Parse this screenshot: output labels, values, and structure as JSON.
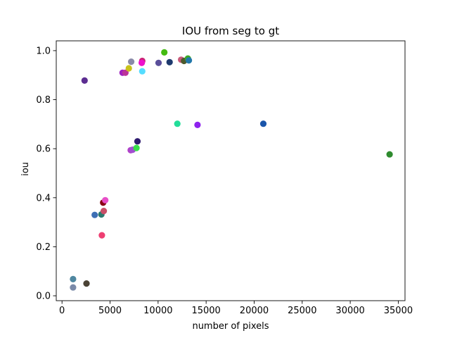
{
  "chart_data": {
    "type": "scatter",
    "title": "IOU from seg to gt",
    "xlabel": "number of pixels",
    "ylabel": "iou",
    "xlim": [
      -600,
      35700
    ],
    "ylim": [
      -0.02,
      1.04
    ],
    "grid": false,
    "x_ticks": [
      0,
      5000,
      10000,
      15000,
      20000,
      25000,
      30000,
      35000
    ],
    "x_tick_labels": [
      "0",
      "5000",
      "10000",
      "15000",
      "20000",
      "25000",
      "30000",
      "35000"
    ],
    "y_ticks": [
      0.0,
      0.2,
      0.4,
      0.6,
      0.8,
      1.0
    ],
    "y_tick_labels": [
      "0.0",
      "0.2",
      "0.4",
      "0.6",
      "0.8",
      "1.0"
    ],
    "points": [
      {
        "x": 2350,
        "y": 0.878,
        "color": "#5c2d91"
      },
      {
        "x": 1150,
        "y": 0.068,
        "color": "#4f87a0"
      },
      {
        "x": 1150,
        "y": 0.034,
        "color": "#7a8aa8"
      },
      {
        "x": 2550,
        "y": 0.05,
        "color": "#4a4234"
      },
      {
        "x": 3400,
        "y": 0.33,
        "color": "#3d6fb5"
      },
      {
        "x": 4100,
        "y": 0.332,
        "color": "#2c7a6f"
      },
      {
        "x": 4150,
        "y": 0.247,
        "color": "#ee3e72"
      },
      {
        "x": 4280,
        "y": 0.38,
        "color": "#8a0012"
      },
      {
        "x": 4350,
        "y": 0.346,
        "color": "#c94f68"
      },
      {
        "x": 4500,
        "y": 0.39,
        "color": "#e84fc8"
      },
      {
        "x": 6300,
        "y": 0.91,
        "color": "#a020c0"
      },
      {
        "x": 6600,
        "y": 0.91,
        "color": "#bb3399"
      },
      {
        "x": 6950,
        "y": 0.928,
        "color": "#c9c21a"
      },
      {
        "x": 7200,
        "y": 0.955,
        "color": "#8a8aa8"
      },
      {
        "x": 7150,
        "y": 0.594,
        "color": "#b040c8"
      },
      {
        "x": 7350,
        "y": 0.596,
        "color": "#a050d0"
      },
      {
        "x": 7750,
        "y": 0.603,
        "color": "#38e04a"
      },
      {
        "x": 7850,
        "y": 0.63,
        "color": "#2e1a6e"
      },
      {
        "x": 8350,
        "y": 0.958,
        "color": "#cc2277"
      },
      {
        "x": 8300,
        "y": 0.95,
        "color": "#ee11cc"
      },
      {
        "x": 8350,
        "y": 0.916,
        "color": "#55ddff"
      },
      {
        "x": 10050,
        "y": 0.95,
        "color": "#5a4f9a"
      },
      {
        "x": 10650,
        "y": 0.993,
        "color": "#44bb11"
      },
      {
        "x": 11200,
        "y": 0.953,
        "color": "#1e3a6e"
      },
      {
        "x": 12000,
        "y": 0.702,
        "color": "#22dd99"
      },
      {
        "x": 12400,
        "y": 0.963,
        "color": "#c85a7a"
      },
      {
        "x": 12700,
        "y": 0.958,
        "color": "#4d5a2e"
      },
      {
        "x": 13100,
        "y": 0.968,
        "color": "#3aa828"
      },
      {
        "x": 13200,
        "y": 0.96,
        "color": "#2277aa"
      },
      {
        "x": 14100,
        "y": 0.697,
        "color": "#8e22ee"
      },
      {
        "x": 20950,
        "y": 0.702,
        "color": "#1a55aa"
      },
      {
        "x": 34100,
        "y": 0.577,
        "color": "#2e8b2e"
      }
    ]
  }
}
